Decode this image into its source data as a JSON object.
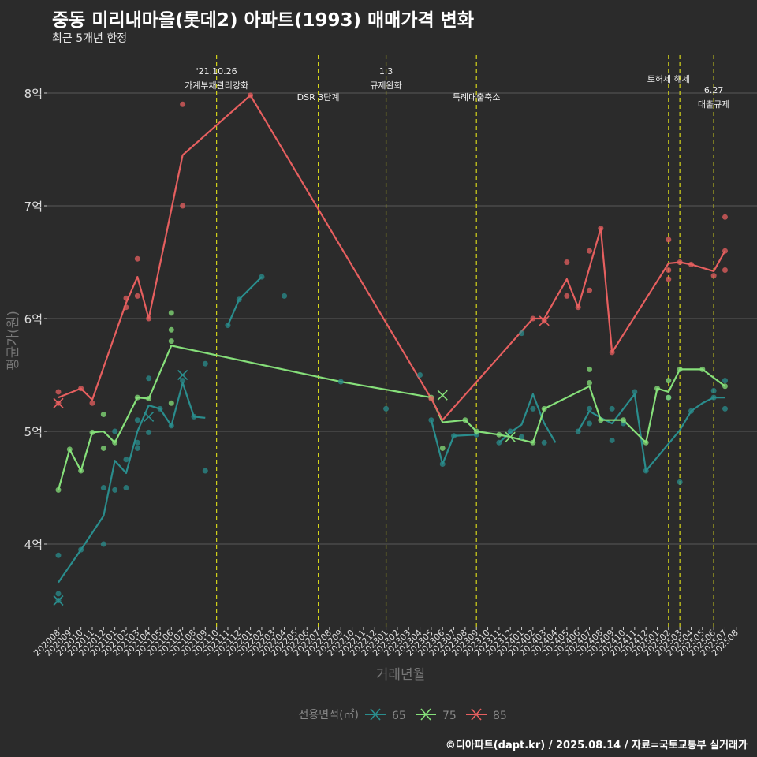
{
  "header": {
    "title": "중동 미리내마을(롯데2) 아파트(1993) 매매가격 변화",
    "subtitle": "최근 5개년 한정"
  },
  "footer": {
    "caption": "©디아파트(dapt.kr) / 2025.08.14 / 자료=국토교통부 실거래가"
  },
  "legend": {
    "title": "전용면적(㎡)"
  },
  "colors": {
    "s65": "#2a8d8d",
    "s75": "#86e07a",
    "s85": "#e65f5f",
    "event": "#d4d41a",
    "grid": "#5a5a5a",
    "background": "#2b2b2b"
  },
  "chart_data": {
    "type": "line",
    "title": "중동 미리내마을(롯데2) 아파트(1993) 매매가격 변화",
    "subtitle": "최근 5개년 한정",
    "xlabel": "거래년월",
    "ylabel": "평균가(원)",
    "ylim": [
      3.3,
      8.55
    ],
    "yticks": [
      4,
      5,
      6,
      7,
      8
    ],
    "ytick_labels": [
      "4억",
      "5억",
      "6억",
      "7억",
      "8억"
    ],
    "x": [
      "202008",
      "202009",
      "202010",
      "202011",
      "202012",
      "202101",
      "202102",
      "202103",
      "202104",
      "202105",
      "202106",
      "202107",
      "202108",
      "202109",
      "202110",
      "202111",
      "202112",
      "202201",
      "202202",
      "202203",
      "202204",
      "202205",
      "202206",
      "202207",
      "202208",
      "202209",
      "202210",
      "202211",
      "202212",
      "202301",
      "202302",
      "202303",
      "202304",
      "202305",
      "202306",
      "202307",
      "202308",
      "202309",
      "202310",
      "202311",
      "202312",
      "202401",
      "202402",
      "202403",
      "202404",
      "202405",
      "202406",
      "202407",
      "202408",
      "202409",
      "202410",
      "202411",
      "202412",
      "202501",
      "202502",
      "202503",
      "202504",
      "202505",
      "202506",
      "202507",
      "202508"
    ],
    "series": [
      {
        "name": "65",
        "color": "#2a8d8d",
        "line": [
          [
            "202008",
            3.66
          ],
          [
            "202010",
            3.95
          ],
          [
            "202012",
            4.25
          ],
          [
            "202101",
            4.74
          ],
          [
            "202102",
            4.63
          ],
          [
            "202103",
            5.0
          ],
          [
            "202104",
            5.23
          ],
          [
            "202105",
            5.2
          ],
          [
            "202106",
            5.05
          ],
          [
            "202107",
            5.43
          ],
          [
            "202108",
            5.13
          ],
          [
            "202109",
            5.12
          ],
          null,
          [
            "202111",
            5.94
          ],
          [
            "202112",
            6.17
          ],
          [
            "202202",
            6.37
          ],
          null,
          [
            "202305",
            5.1
          ],
          [
            "202306",
            4.71
          ],
          [
            "202307",
            4.96
          ],
          [
            "202309",
            4.97
          ],
          null,
          [
            "202311",
            4.9
          ],
          [
            "202312",
            4.99
          ],
          [
            "202401",
            5.06
          ],
          [
            "202402",
            5.33
          ],
          [
            "202403",
            5.07
          ],
          [
            "202404",
            4.9
          ],
          null,
          [
            "202406",
            5.0
          ],
          [
            "202407",
            5.18
          ],
          [
            "202408",
            5.12
          ],
          [
            "202409",
            5.07
          ],
          [
            "202410",
            5.2
          ],
          [
            "202411",
            5.33
          ],
          [
            "202412",
            4.65
          ],
          [
            "202503",
            5.01
          ],
          [
            "202504",
            5.18
          ],
          [
            "202505",
            5.25
          ],
          [
            "202506",
            5.3
          ],
          [
            "202507",
            5.3
          ]
        ],
        "points": [
          [
            "202008",
            3.9
          ],
          [
            "202008",
            3.56
          ],
          [
            "202008",
            3.5
          ],
          [
            "202010",
            3.95
          ],
          [
            "202012",
            4.0
          ],
          [
            "202012",
            4.5
          ],
          [
            "202101",
            4.48
          ],
          [
            "202101",
            5.0
          ],
          [
            "202102",
            4.5
          ],
          [
            "202102",
            4.75
          ],
          [
            "202103",
            4.85
          ],
          [
            "202103",
            4.9
          ],
          [
            "202103",
            5.1
          ],
          [
            "202104",
            4.99
          ],
          [
            "202104",
            5.47
          ],
          [
            "202105",
            5.2
          ],
          [
            "202106",
            5.05
          ],
          [
            "202107",
            5.45
          ],
          [
            "202108",
            5.13
          ],
          [
            "202109",
            4.65
          ],
          [
            "202109",
            5.6
          ],
          [
            "202111",
            5.94
          ],
          [
            "202112",
            6.17
          ],
          [
            "202202",
            6.37
          ],
          [
            "202204",
            6.2
          ],
          [
            "202209",
            5.44
          ],
          [
            "202301",
            5.2
          ],
          [
            "202304",
            5.5
          ],
          [
            "202305",
            5.1
          ],
          [
            "202306",
            4.71
          ],
          [
            "202307",
            4.96
          ],
          [
            "202309",
            4.97
          ],
          [
            "202311",
            4.9
          ],
          [
            "202312",
            5.0
          ],
          [
            "202401",
            4.95
          ],
          [
            "202401",
            5.87
          ],
          [
            "202402",
            5.2
          ],
          [
            "202403",
            4.9
          ],
          [
            "202406",
            5.0
          ],
          [
            "202407",
            5.07
          ],
          [
            "202407",
            5.2
          ],
          [
            "202409",
            5.2
          ],
          [
            "202409",
            4.92
          ],
          [
            "202410",
            5.07
          ],
          [
            "202411",
            5.35
          ],
          [
            "202412",
            4.65
          ],
          [
            "202502",
            5.3
          ],
          [
            "202503",
            4.55
          ],
          [
            "202504",
            5.18
          ],
          [
            "202506",
            5.3
          ],
          [
            "202506",
            5.36
          ],
          [
            "202507",
            5.2
          ],
          [
            "202507",
            5.45
          ]
        ],
        "crosses": [
          [
            "202008",
            3.5
          ],
          [
            "202104",
            5.13
          ],
          [
            "202107",
            5.5
          ]
        ]
      },
      {
        "name": "75",
        "color": "#86e07a",
        "line": [
          [
            "202008",
            4.48
          ],
          [
            "202009",
            4.84
          ],
          [
            "202010",
            4.65
          ],
          [
            "202011",
            4.99
          ],
          [
            "202012",
            5.0
          ],
          [
            "202101",
            4.9
          ],
          [
            "202102",
            5.1
          ],
          [
            "202103",
            5.3
          ],
          [
            "202104",
            5.29
          ],
          [
            "202106",
            5.76
          ],
          [
            "202209",
            5.44
          ],
          [
            "202305",
            5.3
          ],
          [
            "202306",
            5.08
          ],
          [
            "202308",
            5.1
          ],
          [
            "202309",
            5.0
          ],
          [
            "202311",
            4.97
          ],
          [
            "202312",
            4.95
          ],
          [
            "202402",
            4.9
          ],
          [
            "202403",
            5.2
          ],
          [
            "202407",
            5.4
          ],
          [
            "202408",
            5.1
          ],
          [
            "202410",
            5.1
          ],
          [
            "202412",
            4.9
          ],
          [
            "202501",
            5.38
          ],
          [
            "202502",
            5.35
          ],
          [
            "202503",
            5.55
          ],
          [
            "202505",
            5.55
          ],
          [
            "202507",
            5.4
          ]
        ],
        "points": [
          [
            "202008",
            4.48
          ],
          [
            "202009",
            4.84
          ],
          [
            "202010",
            4.65
          ],
          [
            "202011",
            4.99
          ],
          [
            "202012",
            4.85
          ],
          [
            "202012",
            5.15
          ],
          [
            "202101",
            4.9
          ],
          [
            "202103",
            5.3
          ],
          [
            "202104",
            5.29
          ],
          [
            "202106",
            5.25
          ],
          [
            "202106",
            5.8
          ],
          [
            "202106",
            5.9
          ],
          [
            "202106",
            6.05
          ],
          [
            "202305",
            5.3
          ],
          [
            "202306",
            4.85
          ],
          [
            "202308",
            5.1
          ],
          [
            "202309",
            5.0
          ],
          [
            "202311",
            4.97
          ],
          [
            "202402",
            4.9
          ],
          [
            "202403",
            5.2
          ],
          [
            "202407",
            5.43
          ],
          [
            "202407",
            5.55
          ],
          [
            "202408",
            5.1
          ],
          [
            "202410",
            5.1
          ],
          [
            "202412",
            4.9
          ],
          [
            "202501",
            5.38
          ],
          [
            "202502",
            5.3
          ],
          [
            "202502",
            5.45
          ],
          [
            "202503",
            5.55
          ],
          [
            "202505",
            5.55
          ],
          [
            "202507",
            5.4
          ]
        ],
        "crosses": [
          [
            "202306",
            5.32
          ],
          [
            "202312",
            4.95
          ]
        ]
      },
      {
        "name": "85",
        "color": "#e65f5f",
        "line": [
          [
            "202008",
            5.3
          ],
          [
            "202010",
            5.38
          ],
          [
            "202011",
            5.28
          ],
          [
            "202102",
            6.14
          ],
          [
            "202103",
            6.37
          ],
          [
            "202104",
            6.0
          ],
          [
            "202107",
            7.45
          ],
          [
            "202201",
            7.98
          ],
          [
            "202305",
            5.29
          ],
          [
            "202306",
            5.1
          ],
          [
            "202402",
            6.0
          ],
          [
            "202403",
            6.0
          ],
          [
            "202405",
            6.35
          ],
          [
            "202406",
            6.1
          ],
          [
            "202408",
            6.8
          ],
          [
            "202409",
            5.7
          ],
          [
            "202502",
            6.49
          ],
          [
            "202503",
            6.5
          ],
          [
            "202504",
            6.48
          ],
          [
            "202506",
            6.42
          ],
          [
            "202507",
            6.6
          ]
        ],
        "points": [
          [
            "202008",
            5.35
          ],
          [
            "202008",
            5.25
          ],
          [
            "202010",
            5.38
          ],
          [
            "202011",
            5.25
          ],
          [
            "202102",
            6.1
          ],
          [
            "202102",
            6.18
          ],
          [
            "202103",
            6.2
          ],
          [
            "202103",
            6.53
          ],
          [
            "202104",
            6.0
          ],
          [
            "202107",
            7.9
          ],
          [
            "202107",
            7.0
          ],
          [
            "202201",
            7.98
          ],
          [
            "202305",
            5.29
          ],
          [
            "202402",
            6.0
          ],
          [
            "202403",
            5.98
          ],
          [
            "202405",
            6.2
          ],
          [
            "202405",
            6.5
          ],
          [
            "202406",
            6.1
          ],
          [
            "202407",
            6.6
          ],
          [
            "202407",
            6.25
          ],
          [
            "202408",
            6.8
          ],
          [
            "202409",
            5.7
          ],
          [
            "202502",
            6.35
          ],
          [
            "202502",
            6.43
          ],
          [
            "202502",
            6.7
          ],
          [
            "202503",
            6.5
          ],
          [
            "202504",
            6.48
          ],
          [
            "202506",
            6.38
          ],
          [
            "202507",
            6.9
          ],
          [
            "202507",
            6.6
          ],
          [
            "202507",
            6.43
          ]
        ],
        "crosses": [
          [
            "202008",
            5.25
          ],
          [
            "202403",
            5.98
          ]
        ]
      }
    ],
    "events": [
      {
        "x": "202110",
        "label": [
          "'21.10.26",
          "가계부채관리강화"
        ],
        "row": "high"
      },
      {
        "x": "202207",
        "label": [
          "DSR 3단계"
        ],
        "row": "low"
      },
      {
        "x": "202301",
        "label": [
          "1.3",
          "규제완화"
        ],
        "row": "high"
      },
      {
        "x": "202309",
        "label": [
          "특례대출축소"
        ],
        "row": "low"
      },
      {
        "x": "202502",
        "label": [
          "토허제 해제"
        ],
        "row": "top"
      },
      {
        "x": "202503",
        "label": [],
        "row": "none"
      },
      {
        "x": "202506",
        "label": [
          "6.27",
          "대출규제"
        ],
        "row": "mid"
      }
    ],
    "legend_position": "bottom",
    "grid": true
  }
}
